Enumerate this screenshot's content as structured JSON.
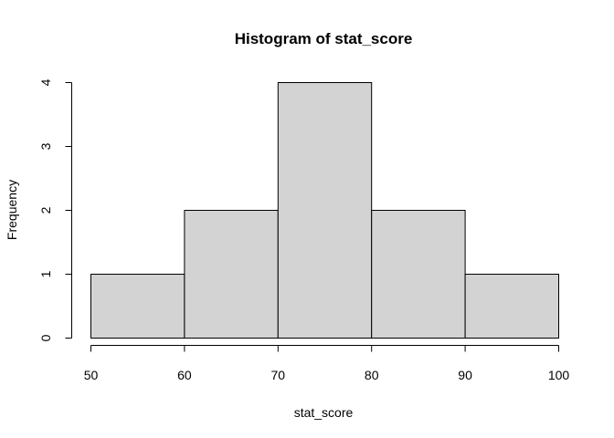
{
  "chart_data": {
    "type": "histogram",
    "title": "Histogram of stat_score",
    "xlabel": "stat_score",
    "ylabel": "Frequency",
    "bins": [
      {
        "from": 50,
        "to": 60,
        "count": 1
      },
      {
        "from": 60,
        "to": 70,
        "count": 2
      },
      {
        "from": 70,
        "to": 80,
        "count": 4
      },
      {
        "from": 80,
        "to": 90,
        "count": 2
      },
      {
        "from": 90,
        "to": 100,
        "count": 1
      }
    ],
    "xlim": [
      50,
      100
    ],
    "ylim": [
      0,
      4
    ],
    "xticks": [
      50,
      60,
      70,
      80,
      90,
      100
    ],
    "yticks": [
      0,
      1,
      2,
      3,
      4
    ],
    "bar_color": "#d3d3d3",
    "grid": false,
    "legend": "none"
  }
}
